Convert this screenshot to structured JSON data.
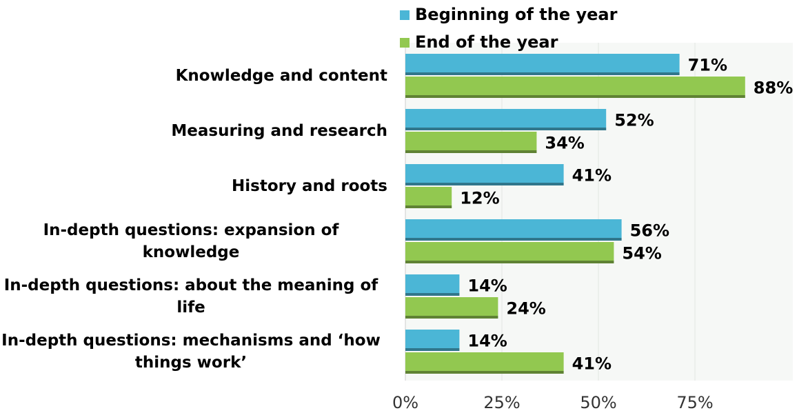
{
  "chart_data": {
    "type": "hbar",
    "categories": [
      "Knowledge and content",
      "Measuring and research",
      "History and roots",
      "In-depth questions: expansion of knowledge",
      "In-depth questions: about the meaning  of life",
      "In-depth questions: mechanisms and ‘how things work’"
    ],
    "series": [
      {
        "name": "Beginning of the year",
        "color": "#4bb6d6",
        "values": [
          71,
          52,
          41,
          56,
          14,
          14
        ],
        "value_labels": [
          "71%",
          "52%",
          "41%",
          "56%",
          "14%",
          "14%"
        ]
      },
      {
        "name": "End of the year",
        "color": "#92c850",
        "values": [
          88,
          34,
          12,
          54,
          24,
          41
        ],
        "value_labels": [
          "88%",
          "34%",
          "12%",
          "54%",
          "24%",
          "41%"
        ]
      }
    ],
    "xlim": [
      0,
      100
    ],
    "xticks": [
      {
        "value": 0,
        "label": "0%"
      },
      {
        "value": 25,
        "label": "25%"
      },
      {
        "value": 50,
        "label": "50%"
      },
      {
        "value": 75,
        "label": "75%"
      }
    ],
    "grid": true,
    "legend": "top"
  }
}
